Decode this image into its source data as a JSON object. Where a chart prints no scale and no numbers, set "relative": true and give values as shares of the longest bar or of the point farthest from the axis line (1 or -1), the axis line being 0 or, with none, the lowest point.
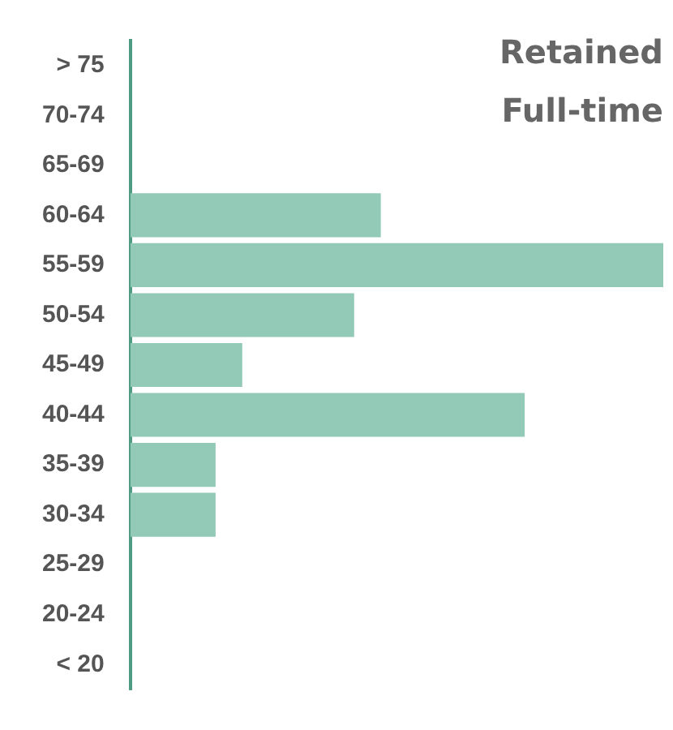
{
  "chart_data": {
    "type": "bar",
    "orientation": "horizontal",
    "relative": true,
    "title": "Retained Full-time",
    "categories": [
      "> 75",
      "70-74",
      "65-69",
      "60-64",
      "55-59",
      "50-54",
      "45-49",
      "40-44",
      "35-39",
      "30-34",
      "25-29",
      "20-24",
      "< 20"
    ],
    "values": [
      0,
      0,
      0,
      0.47,
      1,
      0.42,
      0.21,
      0.74,
      0.16,
      0.16,
      0,
      0,
      0
    ],
    "color": "#93c9b7"
  }
}
